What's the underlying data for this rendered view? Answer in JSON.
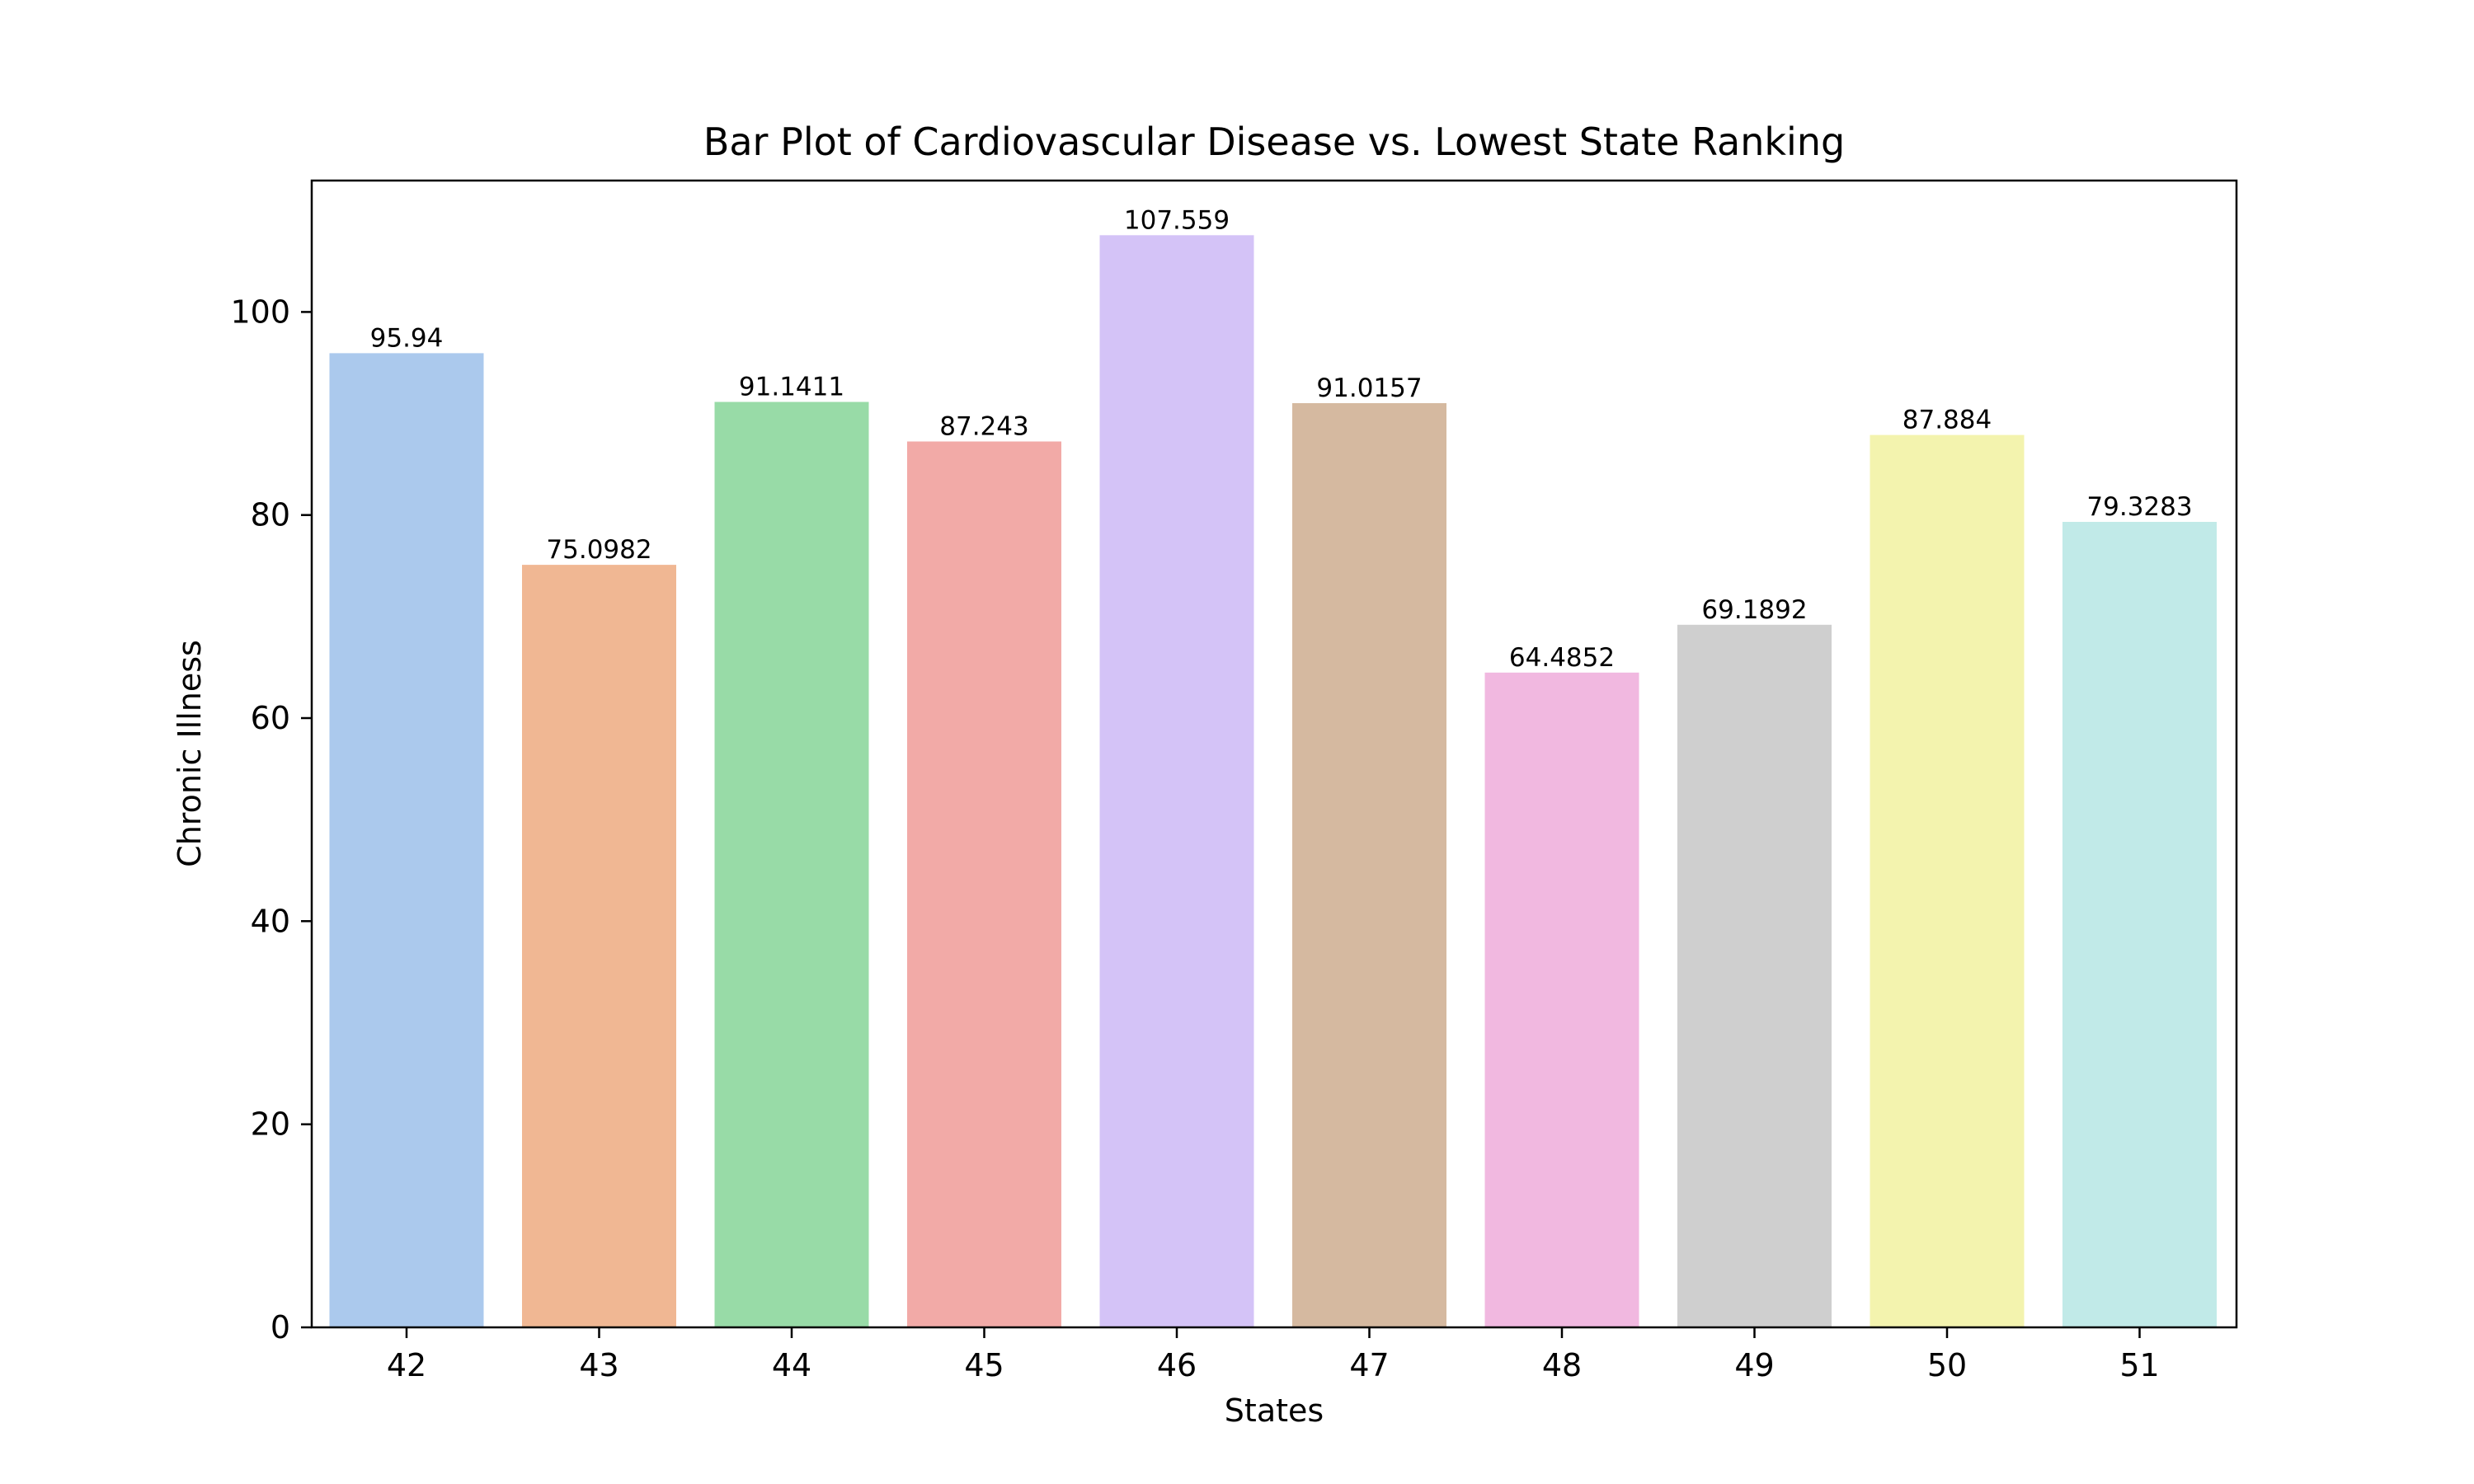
{
  "chart_data": {
    "type": "bar",
    "title": "Bar Plot of Cardiovascular Disease vs. Lowest State Ranking",
    "xlabel": "States",
    "ylabel": "Chronic Illness",
    "categories": [
      "42",
      "43",
      "44",
      "45",
      "46",
      "47",
      "48",
      "49",
      "50",
      "51"
    ],
    "values": [
      95.94,
      75.0982,
      91.1411,
      87.243,
      107.559,
      91.0157,
      64.4852,
      69.1892,
      87.884,
      79.3283
    ],
    "data_labels": [
      "95.94",
      "75.0982",
      "91.1411",
      "87.243",
      "107.559",
      "91.0157",
      "64.4852",
      "69.1892",
      "87.884",
      "79.3283"
    ],
    "colors": [
      "#abc9ed",
      "#f0b793",
      "#98dba7",
      "#f2aaa7",
      "#d4c3f7",
      "#d5b9a0",
      "#f1b8e0",
      "#cfcfcf",
      "#f3f3ae",
      "#c1eae8"
    ],
    "ylim": [
      0,
      112.94
    ],
    "yticks": [
      0,
      20,
      40,
      60,
      80,
      100
    ],
    "ytick_labels": [
      "0",
      "20",
      "40",
      "60",
      "80",
      "100"
    ],
    "grid": false,
    "legend": "none"
  }
}
